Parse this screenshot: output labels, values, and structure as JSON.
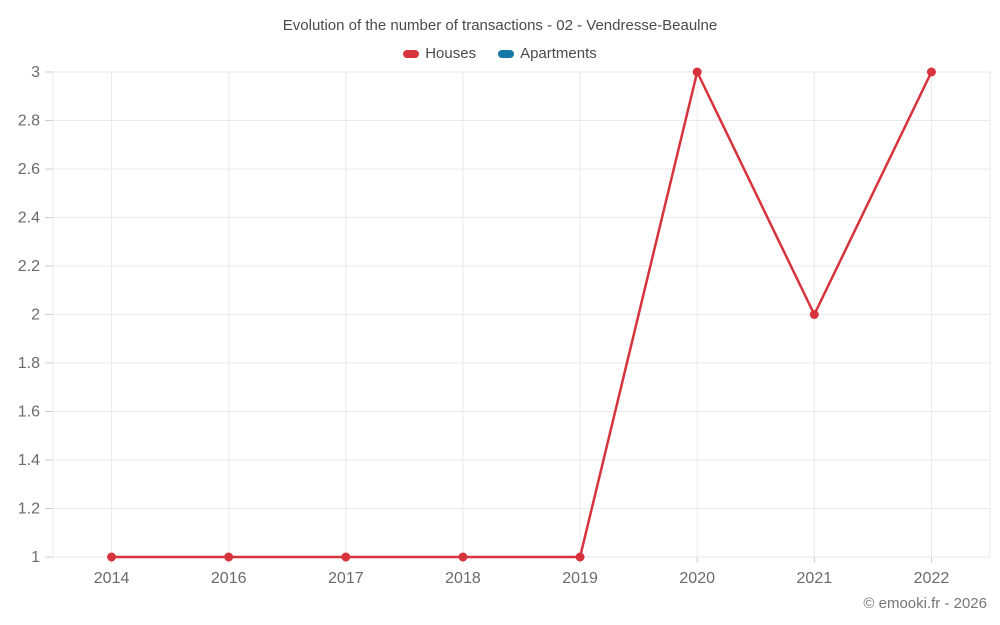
{
  "title": "Evolution of the number of transactions - 02 - Vendresse-Beaulne",
  "watermark": "© emooki.fr - 2026",
  "legend": [
    {
      "label": "Houses",
      "color": "#d7333c"
    },
    {
      "label": "Apartments",
      "color": "#1478a8"
    }
  ],
  "colors": {
    "houses": "#d7333c",
    "apartments": "#1478a8",
    "grid": "#e9e9e9",
    "tick": "#cdcdcd",
    "axis_label": "#6b6b6b",
    "title_text": "#4a4a4a",
    "watermark_text": "#777777",
    "background": "#ffffff"
  },
  "chart_data": {
    "type": "line",
    "title": "Evolution of the number of transactions - 02 - Vendresse-Beaulne",
    "xlabel": "",
    "ylabel": "",
    "categories": [
      "2014",
      "2016",
      "2017",
      "2018",
      "2019",
      "2020",
      "2021",
      "2022"
    ],
    "series": [
      {
        "name": "Houses",
        "color": "#d7333c",
        "values": [
          1,
          1,
          1,
          1,
          1,
          3,
          2,
          3
        ]
      },
      {
        "name": "Apartments",
        "color": "#1478a8",
        "values": []
      }
    ],
    "ylim": [
      1,
      3
    ],
    "yticks": [
      1,
      1.2,
      1.4,
      1.6,
      1.8,
      2,
      2.2,
      2.4,
      2.6,
      2.8,
      3
    ],
    "grid": true,
    "legend_position": "top"
  }
}
